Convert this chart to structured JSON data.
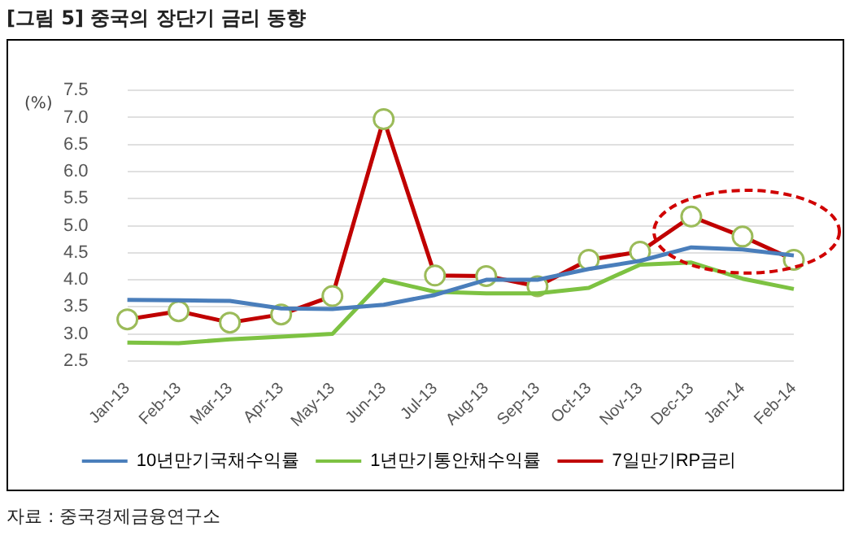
{
  "chart_data": {
    "type": "line",
    "title": "[그림 5] 중국의 장단기 금리 동향",
    "ylabel": "(%)",
    "categories": [
      "Jan-13",
      "Feb-13",
      "Mar-13",
      "Apr-13",
      "May-13",
      "Jun-13",
      "Jul-13",
      "Aug-13",
      "Sep-13",
      "Oct-13",
      "Nov-13",
      "Dec-13",
      "Jan-14",
      "Feb-14"
    ],
    "series": [
      {
        "name": "10년만기국채수익률",
        "color": "#4a7ebb",
        "marker": "none",
        "values": [
          3.63,
          3.62,
          3.61,
          3.47,
          3.46,
          3.54,
          3.72,
          4.0,
          4.0,
          4.2,
          4.35,
          4.6,
          4.56,
          4.45
        ]
      },
      {
        "name": "1년만기통안채수익률",
        "color": "#7dc242",
        "marker": "none",
        "values": [
          2.84,
          2.83,
          2.9,
          2.95,
          3.0,
          4.0,
          3.78,
          3.75,
          3.75,
          3.85,
          4.28,
          4.32,
          4.02,
          3.83
        ]
      },
      {
        "name": "7일만기RP금리",
        "color": "#c00000",
        "marker": "circle",
        "values": [
          3.27,
          3.42,
          3.21,
          3.36,
          3.7,
          6.97,
          4.08,
          4.07,
          3.88,
          4.37,
          4.52,
          5.17,
          4.8,
          4.37
        ]
      }
    ],
    "ylim": [
      2.5,
      7.5
    ],
    "yticks": [
      {
        "value": 2.5,
        "label": "2.5"
      },
      {
        "value": 3,
        "label": "3.0"
      },
      {
        "value": 3.5,
        "label": "3.5"
      },
      {
        "value": 4,
        "label": "4.0"
      },
      {
        "value": 4.5,
        "label": "4.5"
      },
      {
        "value": 5,
        "label": "5.0"
      },
      {
        "value": 5.5,
        "label": "5.5"
      },
      {
        "value": 6,
        "label": "6.0"
      },
      {
        "value": 6.5,
        "label": "6.5"
      },
      {
        "value": 7,
        "label": "7.0"
      },
      {
        "value": 7.5,
        "label": "7.5"
      }
    ],
    "grid": "y",
    "legend": "bottom",
    "line_style": "solid",
    "annotations": [
      "자료 : 중국경제금융연구소"
    ]
  }
}
